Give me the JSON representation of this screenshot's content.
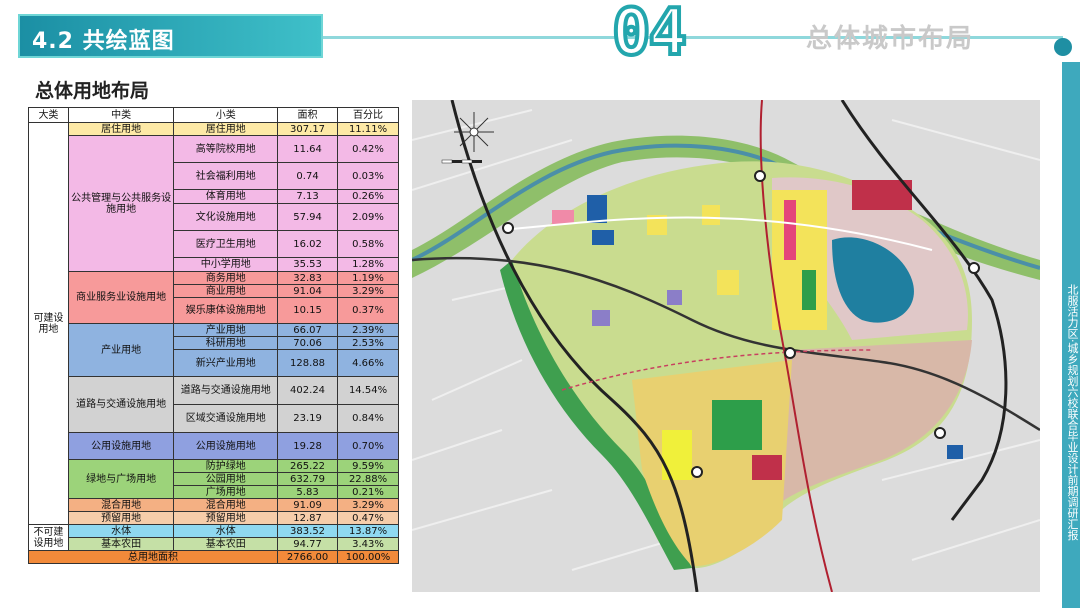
{
  "header": {
    "section_tag": "4.2 共绘蓝图",
    "big_number": "04",
    "section_title": "总体城市布局",
    "side_text": "北服活力区·城乡规划六校联合毕业设计前期调研汇报"
  },
  "subtitle": "总体用地布局",
  "table": {
    "headers": [
      "大类",
      "中类",
      "小类",
      "面积",
      "百分比"
    ],
    "group_buildable": "可建设用地",
    "group_nonbuildable": "不可建设用地",
    "mid": {
      "residential": "居住用地",
      "public": "公共管理与公共服务设施用地",
      "commercial": "商业服务业设施用地",
      "industry": "产业用地",
      "transport": "道路与交通设施用地",
      "utility": "公用设施用地",
      "green": "绿地与广场用地",
      "mixed": "混合用地",
      "reserve": "预留用地",
      "water": "水体",
      "farm": "基本农田"
    },
    "rows": [
      {
        "sub": "居住用地",
        "area": "307.17",
        "pct": "11.11%"
      },
      {
        "sub": "高等院校用地",
        "area": "11.64",
        "pct": "0.42%"
      },
      {
        "sub": "社会福利用地",
        "area": "0.74",
        "pct": "0.03%"
      },
      {
        "sub": "体育用地",
        "area": "7.13",
        "pct": "0.26%"
      },
      {
        "sub": "文化设施用地",
        "area": "57.94",
        "pct": "2.09%"
      },
      {
        "sub": "医疗卫生用地",
        "area": "16.02",
        "pct": "0.58%"
      },
      {
        "sub": "中小学用地",
        "area": "35.53",
        "pct": "1.28%"
      },
      {
        "sub": "商务用地",
        "area": "32.83",
        "pct": "1.19%"
      },
      {
        "sub": "商业用地",
        "area": "91.04",
        "pct": "3.29%"
      },
      {
        "sub": "娱乐康体设施用地",
        "area": "10.15",
        "pct": "0.37%"
      },
      {
        "sub": "产业用地",
        "area": "66.07",
        "pct": "2.39%"
      },
      {
        "sub": "科研用地",
        "area": "70.06",
        "pct": "2.53%"
      },
      {
        "sub": "新兴产业用地",
        "area": "128.88",
        "pct": "4.66%"
      },
      {
        "sub": "道路与交通设施用地",
        "area": "402.24",
        "pct": "14.54%"
      },
      {
        "sub": "区域交通设施用地",
        "area": "23.19",
        "pct": "0.84%"
      },
      {
        "sub": "公用设施用地",
        "area": "19.28",
        "pct": "0.70%"
      },
      {
        "sub": "防护绿地",
        "area": "265.22",
        "pct": "9.59%"
      },
      {
        "sub": "公园用地",
        "area": "632.79",
        "pct": "22.88%"
      },
      {
        "sub": "广场用地",
        "area": "5.83",
        "pct": "0.21%"
      },
      {
        "sub": "混合用地",
        "area": "91.09",
        "pct": "3.29%"
      },
      {
        "sub": "预留用地",
        "area": "12.87",
        "pct": "0.47%"
      },
      {
        "sub": "水体",
        "area": "383.52",
        "pct": "13.87%"
      },
      {
        "sub": "基本农田",
        "area": "94.77",
        "pct": "3.43%"
      }
    ],
    "total_label": "总用地面积",
    "total_area": "2766.00",
    "total_pct": "100.00%"
  },
  "colors": {
    "residential": "#fde9a6",
    "public": "#f3b9e6",
    "commercial": "#f79a9a",
    "industry": "#8fb3e0",
    "transport": "#d2d2d2",
    "utility": "#8fa0e0",
    "green": "#9cd37a",
    "mixed": "#f4b083",
    "reserve": "#f6cdaa",
    "water": "#8fd8f0",
    "farm": "#c5e0a6",
    "total": "#f28a3a"
  }
}
